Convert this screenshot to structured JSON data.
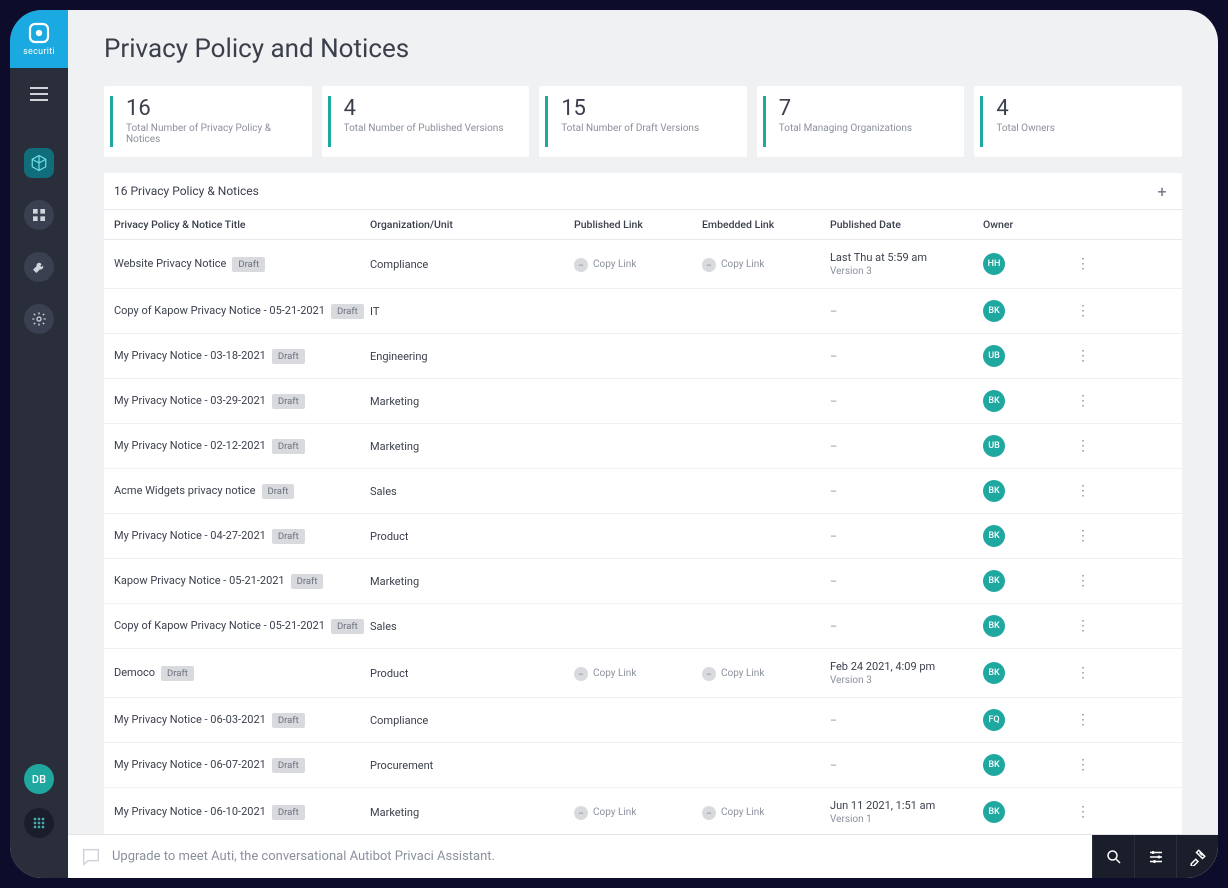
{
  "brand": {
    "name": "securiti"
  },
  "sidebar": {
    "user_initials": "DB"
  },
  "page": {
    "title": "Privacy Policy and Notices"
  },
  "stats": [
    {
      "value": "16",
      "label": "Total Number of Privacy Policy & Notices"
    },
    {
      "value": "4",
      "label": "Total Number of Published Versions"
    },
    {
      "value": "15",
      "label": "Total Number of Draft Versions"
    },
    {
      "value": "7",
      "label": "Total Managing Organizations"
    },
    {
      "value": "4",
      "label": "Total Owners"
    }
  ],
  "table": {
    "caption": "16 Privacy Policy & Notices",
    "columns": [
      "Privacy Policy & Notice Title",
      "Organization/Unit",
      "Published Link",
      "Embedded Link",
      "Published Date",
      "Owner"
    ],
    "copy_label": "Copy Link",
    "draft_label": "Draft",
    "rows": [
      {
        "title": "Website Privacy Notice",
        "badge": "Draft",
        "org": "Compliance",
        "pub": true,
        "emb": true,
        "date": "Last Thu at 5:59 am",
        "version": "Version 3",
        "owner": "HH",
        "owner_color": "#1fa8a0"
      },
      {
        "title": "Copy of Kapow Privacy Notice - 05-21-2021",
        "badge": "Draft",
        "org": "IT",
        "pub": false,
        "emb": false,
        "date": "–",
        "version": "",
        "owner": "BK",
        "owner_color": "#1fa8a0"
      },
      {
        "title": "My Privacy Notice - 03-18-2021",
        "badge": "Draft",
        "org": "Engineering",
        "pub": false,
        "emb": false,
        "date": "–",
        "version": "",
        "owner": "UB",
        "owner_color": "#1fa8a0"
      },
      {
        "title": "My Privacy Notice - 03-29-2021",
        "badge": "Draft",
        "org": "Marketing",
        "pub": false,
        "emb": false,
        "date": "–",
        "version": "",
        "owner": "BK",
        "owner_color": "#1fa8a0"
      },
      {
        "title": "My Privacy Notice - 02-12-2021",
        "badge": "Draft",
        "org": "Marketing",
        "pub": false,
        "emb": false,
        "date": "–",
        "version": "",
        "owner": "UB",
        "owner_color": "#1fa8a0"
      },
      {
        "title": "Acme Widgets privacy notice",
        "badge": "Draft",
        "org": "Sales",
        "pub": false,
        "emb": false,
        "date": "–",
        "version": "",
        "owner": "BK",
        "owner_color": "#1fa8a0"
      },
      {
        "title": "My Privacy Notice - 04-27-2021",
        "badge": "Draft",
        "org": "Product",
        "pub": false,
        "emb": false,
        "date": "–",
        "version": "",
        "owner": "BK",
        "owner_color": "#1fa8a0"
      },
      {
        "title": "Kapow Privacy Notice - 05-21-2021",
        "badge": "Draft",
        "org": "Marketing",
        "pub": false,
        "emb": false,
        "date": "–",
        "version": "",
        "owner": "BK",
        "owner_color": "#1fa8a0"
      },
      {
        "title": "Copy of Kapow Privacy Notice - 05-21-2021",
        "badge": "Draft",
        "org": "Sales",
        "pub": false,
        "emb": false,
        "date": "–",
        "version": "",
        "owner": "BK",
        "owner_color": "#1fa8a0"
      },
      {
        "title": "Democo",
        "badge": "Draft",
        "org": "Product",
        "pub": true,
        "emb": true,
        "date": "Feb 24 2021, 4:09 pm",
        "version": "Version 3",
        "owner": "BK",
        "owner_color": "#1fa8a0"
      },
      {
        "title": "My Privacy Notice - 06-03-2021",
        "badge": "Draft",
        "org": "Compliance",
        "pub": false,
        "emb": false,
        "date": "–",
        "version": "",
        "owner": "FQ",
        "owner_color": "#1fa8a0"
      },
      {
        "title": "My Privacy Notice - 06-07-2021",
        "badge": "Draft",
        "org": "Procurement",
        "pub": false,
        "emb": false,
        "date": "–",
        "version": "",
        "owner": "BK",
        "owner_color": "#1fa8a0"
      },
      {
        "title": "My Privacy Notice - 06-10-2021",
        "badge": "Draft",
        "org": "Marketing",
        "pub": true,
        "emb": true,
        "date": "Jun 11 2021, 1:51 am",
        "version": "Version 1",
        "owner": "BK",
        "owner_color": "#1fa8a0"
      }
    ]
  },
  "footer": {
    "hint": "Upgrade to meet Auti, the conversational Autibot Privaci Assistant."
  },
  "styling": {
    "accent_color": "#1fa8a0",
    "brand_color": "#1ba9e1",
    "background": "#f0f1f3",
    "device_frame": "#0d0d2b",
    "sidebar_bg": "#2a2e3a",
    "text_primary": "#3a3f4b",
    "text_muted": "#8b909c",
    "pill_bg": "#d8dadd",
    "border": "#e8e9ec",
    "stat_font_size": 22,
    "label_font_size": 10,
    "title_font_size": 26,
    "row_font_size": 11
  }
}
